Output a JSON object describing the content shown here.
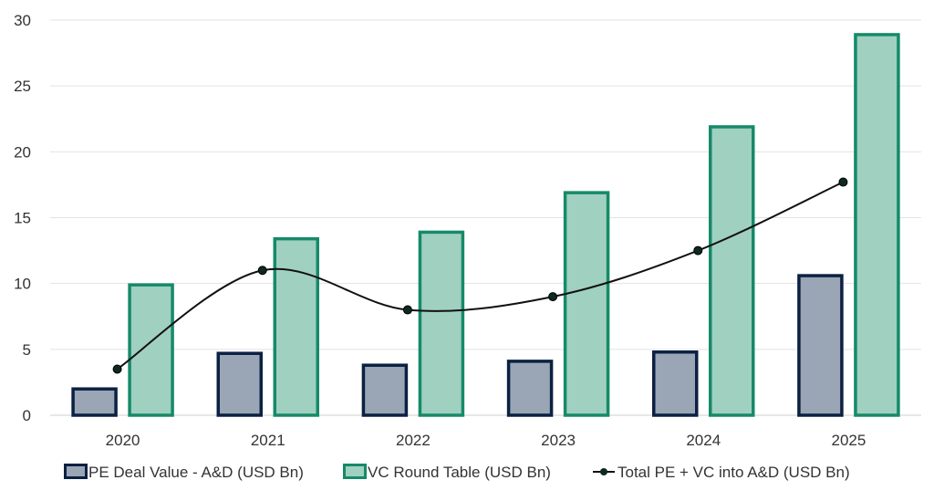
{
  "chart_data": {
    "type": "bar",
    "categories": [
      "2020",
      "2021",
      "2022",
      "2023",
      "2024",
      "2025"
    ],
    "ylim": [
      0,
      30
    ],
    "yticks": [
      0,
      5,
      10,
      15,
      20,
      25,
      30
    ],
    "grid": true,
    "legend_placement": "bottom",
    "series": [
      {
        "name": "PE Deal Value - A&D (USD Bn)",
        "kind": "bar",
        "values": [
          2.1,
          4.8,
          3.9,
          4.2,
          4.9,
          10.7
        ],
        "fill": "#9aa5b5",
        "stroke": "#0b2142"
      },
      {
        "name": "VC Round Table (USD Bn)",
        "kind": "bar",
        "values": [
          10,
          13.5,
          14,
          17,
          22,
          29
        ],
        "fill": "#a0d0c0",
        "stroke": "#168a68"
      },
      {
        "name": "Total PE + VC into A&D (USD Bn)",
        "kind": "line",
        "smooth": true,
        "values": [
          3.5,
          11,
          8,
          9,
          12.5,
          17.7
        ],
        "stroke": "#111111",
        "marker": "#0d2a1c"
      }
    ]
  }
}
